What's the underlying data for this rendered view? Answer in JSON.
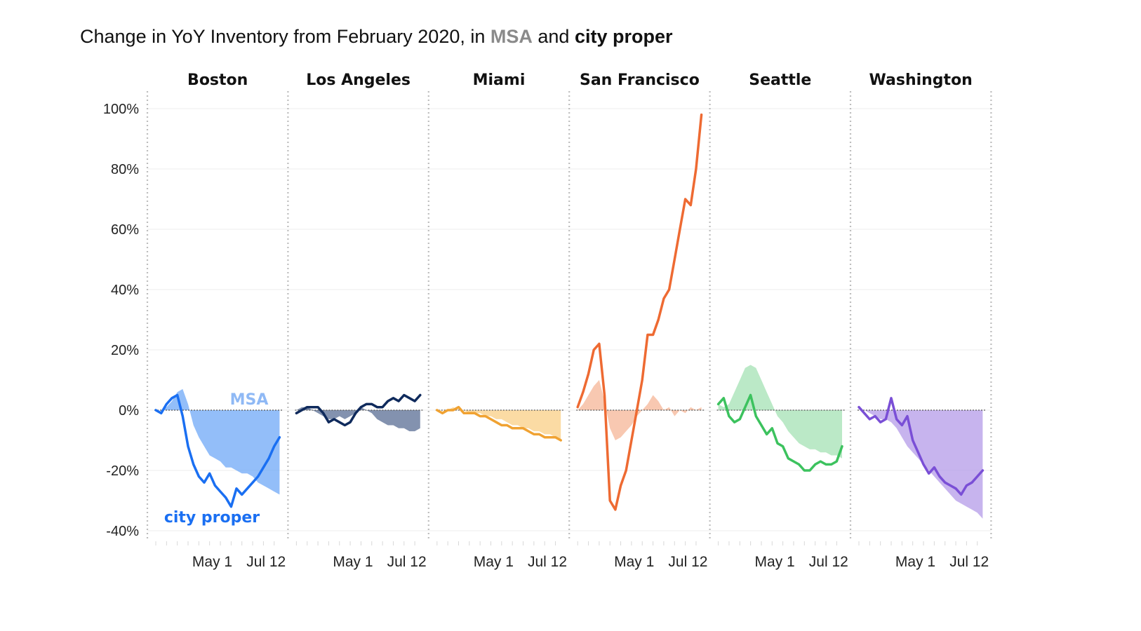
{
  "chart_data": {
    "type": "area",
    "title_parts": {
      "prefix": "Change in YoY Inventory from February 2020, in ",
      "msa": "MSA",
      "connector": " and ",
      "city": "city proper"
    },
    "y_ticks": [
      "100%",
      "80%",
      "60%",
      "40%",
      "20%",
      "0%",
      "-20%",
      "-40%"
    ],
    "y_tick_values": [
      100,
      80,
      60,
      40,
      20,
      0,
      -20,
      -40
    ],
    "ylim": [
      -40,
      100
    ],
    "x_ticks": [
      {
        "label": "May 1",
        "week": 10.5
      },
      {
        "label": "Jul 12",
        "week": 20.5
      }
    ],
    "week_count": 24,
    "grid": true,
    "annotations": {
      "msa_label": "MSA",
      "city_label": "city proper",
      "msa_color": "#8fb9f5",
      "city_color": "#1a6ff2"
    },
    "panels": [
      {
        "name": "Boston",
        "line_color": "#1a6ff2",
        "area_color": "#6fa8f7",
        "msa": [
          0,
          0,
          1,
          3,
          6,
          7,
          2,
          -5,
          -9,
          -12,
          -15,
          -16,
          -17,
          -19,
          -19,
          -20,
          -21,
          -21,
          -22,
          -24,
          -25,
          -26,
          -27,
          -28
        ],
        "city": [
          0,
          -1,
          2,
          4,
          5,
          -2,
          -12,
          -18,
          -22,
          -24,
          -21,
          -25,
          -27,
          -29,
          -32,
          -26,
          -28,
          -26,
          -24,
          -22,
          -19,
          -16,
          -12,
          -9
        ]
      },
      {
        "name": "Los Angeles",
        "line_color": "#0f2a5c",
        "area_color": "#5a6d94",
        "msa": [
          0,
          1,
          1,
          0,
          -1,
          -2,
          -3,
          -3,
          -2,
          -3,
          -2,
          -1,
          1,
          0,
          -1,
          -3,
          -4,
          -5,
          -5,
          -6,
          -6,
          -7,
          -7,
          -6
        ],
        "city": [
          -1,
          0,
          1,
          1,
          1,
          -1,
          -4,
          -3,
          -4,
          -5,
          -4,
          -1,
          1,
          2,
          2,
          1,
          1,
          3,
          4,
          3,
          5,
          4,
          3,
          5
        ]
      },
      {
        "name": "Miami",
        "line_color": "#f0a232",
        "area_color": "#f9cf85",
        "msa": [
          0,
          0,
          0,
          1,
          0,
          0,
          -1,
          -1,
          -1,
          -2,
          -2,
          -3,
          -3,
          -4,
          -5,
          -5,
          -6,
          -6,
          -7,
          -7,
          -8,
          -8,
          -9,
          -10
        ],
        "city": [
          0,
          -1,
          0,
          0,
          1,
          -1,
          -1,
          -1,
          -2,
          -2,
          -3,
          -4,
          -5,
          -5,
          -6,
          -6,
          -6,
          -7,
          -8,
          -8,
          -9,
          -9,
          -9,
          -10
        ]
      },
      {
        "name": "San Francisco",
        "line_color": "#ee6a32",
        "area_color": "#f5b597",
        "msa": [
          0,
          2,
          5,
          8,
          10,
          3,
          -6,
          -10,
          -9,
          -7,
          -5,
          -2,
          0,
          2,
          5,
          3,
          0,
          1,
          -2,
          0,
          -1,
          1,
          0,
          1
        ],
        "city": [
          1,
          6,
          12,
          20,
          22,
          5,
          -30,
          -33,
          -25,
          -20,
          -10,
          0,
          10,
          25,
          25,
          30,
          37,
          40,
          50,
          60,
          70,
          68,
          80,
          98
        ]
      },
      {
        "name": "Seattle",
        "line_color": "#3cc25e",
        "area_color": "#a4e2b4",
        "msa": [
          2,
          1,
          2,
          6,
          10,
          14,
          15,
          14,
          10,
          6,
          2,
          -2,
          -4,
          -7,
          -9,
          -11,
          -12,
          -13,
          -13,
          -14,
          -14,
          -15,
          -15,
          -16
        ],
        "city": [
          2,
          4,
          -2,
          -4,
          -3,
          1,
          5,
          -2,
          -5,
          -8,
          -6,
          -11,
          -12,
          -16,
          -17,
          -18,
          -20,
          -20,
          -18,
          -17,
          -18,
          -18,
          -17,
          -12
        ]
      },
      {
        "name": "Washington",
        "line_color": "#7a4fd6",
        "area_color": "#b49be8",
        "msa": [
          0,
          0,
          -1,
          -2,
          -3,
          -3,
          -4,
          -6,
          -9,
          -12,
          -14,
          -16,
          -18,
          -20,
          -22,
          -24,
          -26,
          -28,
          -30,
          -31,
          -32,
          -33,
          -34,
          -36
        ],
        "city": [
          1,
          -1,
          -3,
          -2,
          -4,
          -3,
          4,
          -3,
          -5,
          -2,
          -10,
          -14,
          -18,
          -21,
          -19,
          -22,
          -24,
          -25,
          -26,
          -28,
          -25,
          -24,
          -22,
          -20
        ]
      }
    ]
  }
}
